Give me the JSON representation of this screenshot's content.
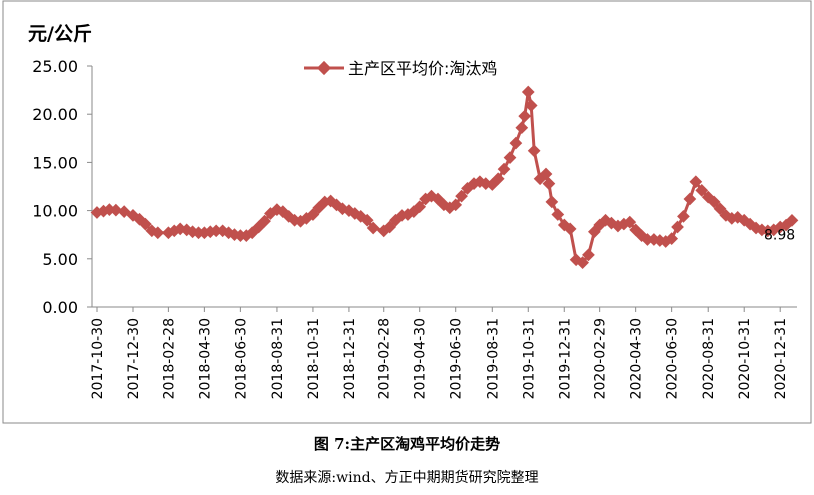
{
  "caption": "图 7:主产区淘鸡平均价走势",
  "source": "数据来源:wind、方正中期期货研究院整理",
  "chart_data": {
    "type": "line",
    "title": "",
    "ylabel": "元/公斤",
    "xlabel": "",
    "ylim": [
      0,
      25
    ],
    "yticks": [
      "0.00",
      "5.00",
      "10.00",
      "15.00",
      "20.00",
      "25.00"
    ],
    "xtick_labels": [
      "2017-10-30",
      "2017-12-30",
      "2018-02-28",
      "2018-04-30",
      "2018-06-30",
      "2018-08-31",
      "2018-10-31",
      "2018-12-31",
      "2019-02-28",
      "2019-04-30",
      "2019-06-30",
      "2019-08-31",
      "2019-10-31",
      "2019-12-31",
      "2020-02-29",
      "2020-04-30",
      "2020-06-30",
      "2020-08-31",
      "2020-10-31",
      "2020-12-31"
    ],
    "legend_position": "top-center",
    "grid": false,
    "series_color": "#c0504d",
    "end_label": "8.98",
    "series": [
      {
        "name": "主产区平均价:淘汰鸡",
        "x": [
          "2017-10-30",
          "2017-11-10",
          "2017-11-20",
          "2017-12-01",
          "2017-12-15",
          "2017-12-30",
          "2018-01-10",
          "2018-01-20",
          "2018-01-31",
          "2018-02-10",
          "2018-02-28",
          "2018-03-10",
          "2018-03-20",
          "2018-03-31",
          "2018-04-10",
          "2018-04-20",
          "2018-04-30",
          "2018-05-10",
          "2018-05-20",
          "2018-05-31",
          "2018-06-10",
          "2018-06-20",
          "2018-06-30",
          "2018-07-10",
          "2018-07-20",
          "2018-07-31",
          "2018-08-10",
          "2018-08-20",
          "2018-08-31",
          "2018-09-10",
          "2018-09-20",
          "2018-09-30",
          "2018-10-10",
          "2018-10-20",
          "2018-10-31",
          "2018-11-10",
          "2018-11-20",
          "2018-11-30",
          "2018-12-10",
          "2018-12-20",
          "2018-12-31",
          "2019-01-10",
          "2019-01-20",
          "2019-01-31",
          "2019-02-10",
          "2019-02-28",
          "2019-03-10",
          "2019-03-20",
          "2019-03-31",
          "2019-04-10",
          "2019-04-20",
          "2019-04-30",
          "2019-05-10",
          "2019-05-20",
          "2019-05-31",
          "2019-06-10",
          "2019-06-20",
          "2019-06-30",
          "2019-07-10",
          "2019-07-20",
          "2019-07-31",
          "2019-08-10",
          "2019-08-20",
          "2019-08-31",
          "2019-09-10",
          "2019-09-20",
          "2019-09-30",
          "2019-10-10",
          "2019-10-20",
          "2019-10-25",
          "2019-10-31",
          "2019-11-05",
          "2019-11-10",
          "2019-11-20",
          "2019-11-30",
          "2019-12-05",
          "2019-12-10",
          "2019-12-20",
          "2019-12-31",
          "2020-01-10",
          "2020-01-20",
          "2020-01-31",
          "2020-02-10",
          "2020-02-20",
          "2020-02-29",
          "2020-03-10",
          "2020-03-20",
          "2020-03-31",
          "2020-04-10",
          "2020-04-20",
          "2020-04-30",
          "2020-05-10",
          "2020-05-20",
          "2020-05-31",
          "2020-06-10",
          "2020-06-20",
          "2020-06-30",
          "2020-07-10",
          "2020-07-20",
          "2020-07-31",
          "2020-08-10",
          "2020-08-20",
          "2020-08-31",
          "2020-09-10",
          "2020-09-20",
          "2020-09-30",
          "2020-10-10",
          "2020-10-20",
          "2020-10-31",
          "2020-11-10",
          "2020-11-20",
          "2020-11-30",
          "2020-12-10",
          "2020-12-20",
          "2020-12-31",
          "2021-01-10",
          "2021-01-20"
        ],
        "values": [
          9.8,
          9.95,
          10.1,
          10.05,
          9.9,
          9.5,
          9.1,
          8.6,
          7.9,
          7.7,
          7.7,
          7.9,
          8.1,
          8.0,
          7.8,
          7.7,
          7.7,
          7.8,
          7.9,
          7.9,
          7.7,
          7.5,
          7.4,
          7.4,
          7.7,
          8.3,
          8.9,
          9.7,
          10.1,
          9.9,
          9.4,
          9.0,
          8.9,
          9.2,
          9.6,
          10.3,
          10.9,
          11.0,
          10.6,
          10.2,
          10.0,
          9.7,
          9.4,
          9.0,
          8.2,
          7.9,
          8.3,
          9.0,
          9.5,
          9.6,
          9.9,
          10.4,
          11.2,
          11.5,
          11.2,
          10.6,
          10.3,
          10.6,
          11.5,
          12.3,
          12.8,
          13.0,
          12.8,
          12.7,
          13.3,
          14.3,
          15.5,
          17.0,
          18.6,
          19.8,
          22.3,
          20.9,
          16.2,
          13.3,
          13.8,
          12.8,
          10.9,
          9.6,
          8.5,
          8.1,
          4.9,
          4.6,
          5.4,
          7.8,
          8.5,
          9.0,
          8.7,
          8.4,
          8.6,
          8.8,
          8.0,
          7.4,
          7.0,
          7.0,
          6.9,
          6.8,
          7.1,
          8.3,
          9.4,
          11.2,
          13.0,
          12.1,
          11.4,
          10.9,
          10.2,
          9.5,
          9.2,
          9.3,
          9.0,
          8.6,
          8.2,
          8.0,
          7.9,
          8.0,
          8.3,
          8.5,
          8.98
        ]
      }
    ]
  }
}
